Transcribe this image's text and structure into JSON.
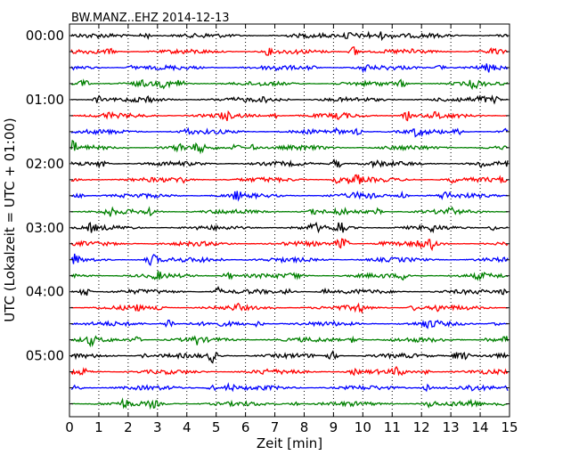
{
  "chart_data": {
    "type": "line",
    "subtype": "seismogram-dayplot",
    "title": "BW.MANZ..EHZ 2014-12-13",
    "xlabel": "Zeit  [min]",
    "ylabel": "UTC (Lokalzeit = UTC + 01:00)",
    "xlim": [
      0,
      15
    ],
    "x_ticks": [
      "0",
      "1",
      "2",
      "3",
      "4",
      "5",
      "6",
      "7",
      "8",
      "9",
      "10",
      "11",
      "12",
      "13",
      "14",
      "15"
    ],
    "y_tick_labels": [
      "00:00",
      "01:00",
      "02:00",
      "03:00",
      "04:00",
      "05:00"
    ],
    "traces_per_hour": 4,
    "trace_count": 24,
    "trace_colors": [
      "#000000",
      "#ff0000",
      "#0000ff",
      "#008000"
    ],
    "grid": "vertical dotted at each minute"
  }
}
